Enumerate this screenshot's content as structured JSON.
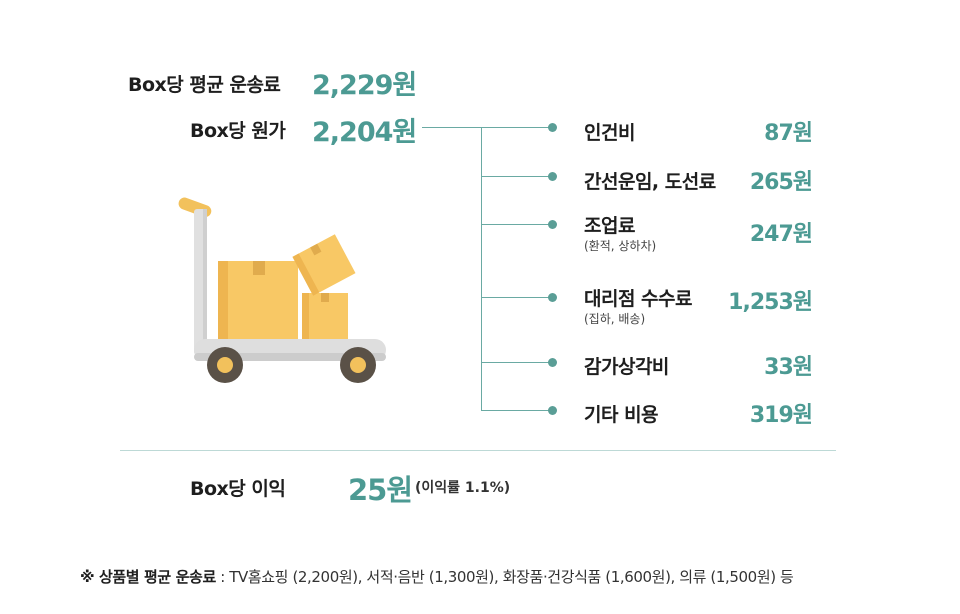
{
  "header": {
    "avg_shipping_label": "Box당 평균 운송료",
    "avg_shipping_value": "2,229원",
    "cost_label": "Box당 원가",
    "cost_value": "2,204원"
  },
  "breakdown": [
    {
      "label": "인건비",
      "sub": "",
      "value": "87원"
    },
    {
      "label": "간선운임, 도선료",
      "sub": "",
      "value": "265원"
    },
    {
      "label": "조업료",
      "sub": "(환적, 상하차)",
      "value": "247원"
    },
    {
      "label": "대리점 수수료",
      "sub": "(집하, 배송)",
      "value": "1,253원"
    },
    {
      "label": "감가상각비",
      "sub": "",
      "value": "33원"
    },
    {
      "label": "기타 비용",
      "sub": "",
      "value": "319원"
    }
  ],
  "profit": {
    "label": "Box당 이익",
    "value": "25원",
    "note": "(이익률 1.1%)"
  },
  "footnote": {
    "prefix": "※ 상품별 평균 운송료",
    "text": " : TV홈쇼핑 (2,200원), 서적·음반 (1,300원), 화장품·건강식품 (1,600원), 의류 (1,500원) 등"
  },
  "icons": [
    "hand-truck-with-boxes-icon"
  ],
  "colors": {
    "accent": "#4c9a93",
    "line": "#6aaaa3",
    "box": "#f7c766",
    "cart": "#d9d9d9",
    "wheel": "#5a5147"
  }
}
